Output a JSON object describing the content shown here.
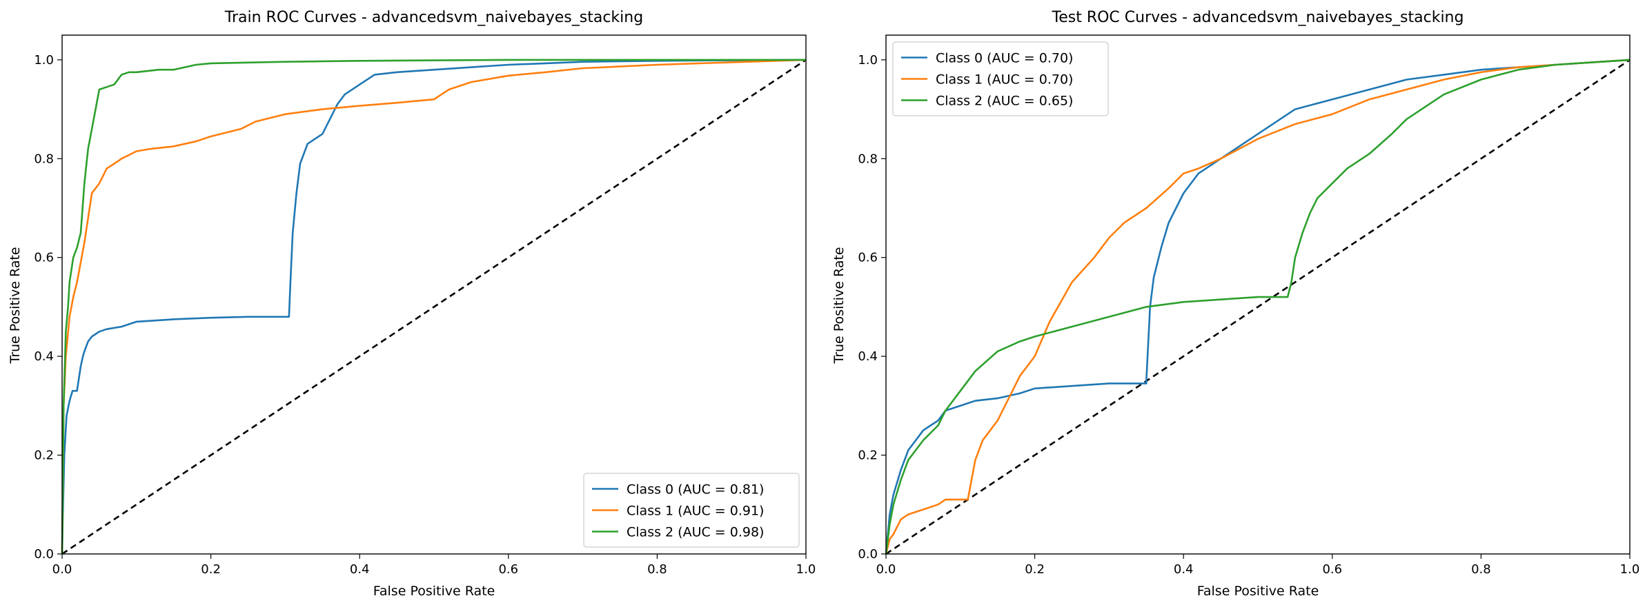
{
  "chart_data": [
    {
      "type": "line",
      "title": "Train ROC Curves - advancedsvm_naivebayes_stacking",
      "xlabel": "False Positive Rate",
      "ylabel": "True Positive Rate",
      "xlim": [
        0.0,
        1.0
      ],
      "ylim": [
        0.0,
        1.05
      ],
      "xticks": [
        "0.0",
        "0.2",
        "0.4",
        "0.6",
        "0.8",
        "1.0"
      ],
      "yticks": [
        "0.0",
        "0.2",
        "0.4",
        "0.6",
        "0.8",
        "1.0"
      ],
      "legend_position": "lower-right",
      "grid": false,
      "diagonal": {
        "x": [
          0,
          1
        ],
        "y": [
          0,
          1
        ],
        "style": "dashed",
        "color": "#000000"
      },
      "series": [
        {
          "name": "Class 0 (AUC = 0.81)",
          "color": "#1f77b4",
          "x": [
            0,
            0.001,
            0.003,
            0.006,
            0.01,
            0.014,
            0.02,
            0.025,
            0.028,
            0.03,
            0.035,
            0.04,
            0.05,
            0.06,
            0.08,
            0.1,
            0.15,
            0.2,
            0.25,
            0.3,
            0.305,
            0.307,
            0.31,
            0.315,
            0.32,
            0.33,
            0.34,
            0.35,
            0.36,
            0.37,
            0.38,
            0.4,
            0.42,
            0.45,
            0.5,
            0.55,
            0.6,
            0.65,
            0.7,
            0.8,
            0.9,
            1.0
          ],
          "y": [
            0,
            0.08,
            0.2,
            0.28,
            0.31,
            0.33,
            0.33,
            0.38,
            0.4,
            0.41,
            0.43,
            0.44,
            0.45,
            0.455,
            0.46,
            0.47,
            0.475,
            0.478,
            0.48,
            0.48,
            0.48,
            0.55,
            0.65,
            0.73,
            0.79,
            0.83,
            0.84,
            0.85,
            0.88,
            0.91,
            0.93,
            0.95,
            0.97,
            0.975,
            0.98,
            0.985,
            0.99,
            0.993,
            0.996,
            0.998,
            0.999,
            1.0
          ]
        },
        {
          "name": "Class 1 (AUC = 0.91)",
          "color": "#ff7f0e",
          "x": [
            0,
            0.002,
            0.005,
            0.01,
            0.015,
            0.02,
            0.03,
            0.035,
            0.04,
            0.05,
            0.06,
            0.07,
            0.08,
            0.1,
            0.12,
            0.15,
            0.18,
            0.2,
            0.24,
            0.26,
            0.3,
            0.35,
            0.4,
            0.45,
            0.5,
            0.52,
            0.55,
            0.6,
            0.65,
            0.7,
            0.8,
            0.9,
            1.0
          ],
          "y": [
            0,
            0.3,
            0.4,
            0.48,
            0.52,
            0.55,
            0.63,
            0.68,
            0.73,
            0.75,
            0.78,
            0.79,
            0.8,
            0.815,
            0.82,
            0.825,
            0.835,
            0.845,
            0.86,
            0.875,
            0.89,
            0.9,
            0.907,
            0.913,
            0.92,
            0.94,
            0.955,
            0.968,
            0.975,
            0.983,
            0.99,
            0.995,
            1.0
          ]
        },
        {
          "name": "Class 2 (AUC = 0.98)",
          "color": "#2ca02c",
          "x": [
            0,
            0.002,
            0.005,
            0.008,
            0.01,
            0.015,
            0.02,
            0.025,
            0.03,
            0.035,
            0.04,
            0.045,
            0.05,
            0.06,
            0.07,
            0.08,
            0.09,
            0.1,
            0.13,
            0.15,
            0.18,
            0.2,
            0.3,
            0.4,
            0.5,
            0.6,
            0.8,
            1.0
          ],
          "y": [
            0,
            0.3,
            0.45,
            0.5,
            0.55,
            0.6,
            0.62,
            0.65,
            0.75,
            0.82,
            0.86,
            0.9,
            0.94,
            0.945,
            0.95,
            0.97,
            0.975,
            0.975,
            0.98,
            0.98,
            0.99,
            0.993,
            0.996,
            0.998,
            0.999,
            1.0,
            1.0,
            1.0
          ]
        }
      ]
    },
    {
      "type": "line",
      "title": "Test ROC Curves - advancedsvm_naivebayes_stacking",
      "xlabel": "False Positive Rate",
      "ylabel": "True Positive Rate",
      "xlim": [
        0.0,
        1.0
      ],
      "ylim": [
        0.0,
        1.05
      ],
      "xticks": [
        "0.0",
        "0.2",
        "0.4",
        "0.6",
        "0.8",
        "1.0"
      ],
      "yticks": [
        "0.0",
        "0.2",
        "0.4",
        "0.6",
        "0.8",
        "1.0"
      ],
      "legend_position": "upper-left",
      "grid": false,
      "diagonal": {
        "x": [
          0,
          1
        ],
        "y": [
          0,
          1
        ],
        "style": "dashed",
        "color": "#000000"
      },
      "series": [
        {
          "name": "Class 0 (AUC = 0.70)",
          "color": "#1f77b4",
          "x": [
            0,
            0.005,
            0.01,
            0.02,
            0.03,
            0.04,
            0.05,
            0.06,
            0.07,
            0.08,
            0.1,
            0.12,
            0.15,
            0.18,
            0.2,
            0.25,
            0.3,
            0.35,
            0.35,
            0.355,
            0.36,
            0.37,
            0.38,
            0.39,
            0.4,
            0.42,
            0.45,
            0.48,
            0.5,
            0.52,
            0.55,
            0.6,
            0.65,
            0.7,
            0.75,
            0.8,
            0.85,
            0.9,
            0.95,
            1.0
          ],
          "y": [
            0,
            0.08,
            0.12,
            0.17,
            0.21,
            0.23,
            0.25,
            0.26,
            0.27,
            0.29,
            0.3,
            0.31,
            0.315,
            0.325,
            0.335,
            0.34,
            0.345,
            0.345,
            0.35,
            0.5,
            0.56,
            0.62,
            0.67,
            0.7,
            0.73,
            0.77,
            0.8,
            0.83,
            0.85,
            0.87,
            0.9,
            0.92,
            0.94,
            0.96,
            0.97,
            0.98,
            0.985,
            0.99,
            0.995,
            1.0
          ]
        },
        {
          "name": "Class 1 (AUC = 0.70)",
          "color": "#ff7f0e",
          "x": [
            0,
            0.005,
            0.01,
            0.02,
            0.03,
            0.05,
            0.07,
            0.08,
            0.11,
            0.12,
            0.13,
            0.15,
            0.17,
            0.18,
            0.2,
            0.22,
            0.25,
            0.28,
            0.3,
            0.32,
            0.35,
            0.38,
            0.4,
            0.42,
            0.45,
            0.5,
            0.55,
            0.6,
            0.65,
            0.7,
            0.75,
            0.8,
            0.85,
            0.9,
            0.95,
            1.0
          ],
          "y": [
            0,
            0.03,
            0.04,
            0.07,
            0.08,
            0.09,
            0.1,
            0.11,
            0.11,
            0.19,
            0.23,
            0.27,
            0.33,
            0.36,
            0.4,
            0.47,
            0.55,
            0.6,
            0.64,
            0.67,
            0.7,
            0.74,
            0.77,
            0.78,
            0.8,
            0.84,
            0.87,
            0.89,
            0.92,
            0.94,
            0.96,
            0.975,
            0.985,
            0.99,
            0.995,
            1.0
          ]
        },
        {
          "name": "Class 2 (AUC = 0.65)",
          "color": "#2ca02c",
          "x": [
            0,
            0.005,
            0.01,
            0.02,
            0.03,
            0.05,
            0.07,
            0.08,
            0.1,
            0.12,
            0.15,
            0.18,
            0.2,
            0.25,
            0.3,
            0.35,
            0.4,
            0.45,
            0.5,
            0.54,
            0.545,
            0.55,
            0.56,
            0.57,
            0.58,
            0.6,
            0.62,
            0.65,
            0.68,
            0.7,
            0.72,
            0.75,
            0.8,
            0.85,
            0.9,
            0.95,
            1.0
          ],
          "y": [
            0,
            0.06,
            0.1,
            0.15,
            0.19,
            0.23,
            0.26,
            0.29,
            0.33,
            0.37,
            0.41,
            0.43,
            0.44,
            0.46,
            0.48,
            0.5,
            0.51,
            0.515,
            0.52,
            0.52,
            0.55,
            0.6,
            0.65,
            0.69,
            0.72,
            0.75,
            0.78,
            0.81,
            0.85,
            0.88,
            0.9,
            0.93,
            0.96,
            0.98,
            0.99,
            0.995,
            1.0
          ]
        }
      ]
    }
  ]
}
